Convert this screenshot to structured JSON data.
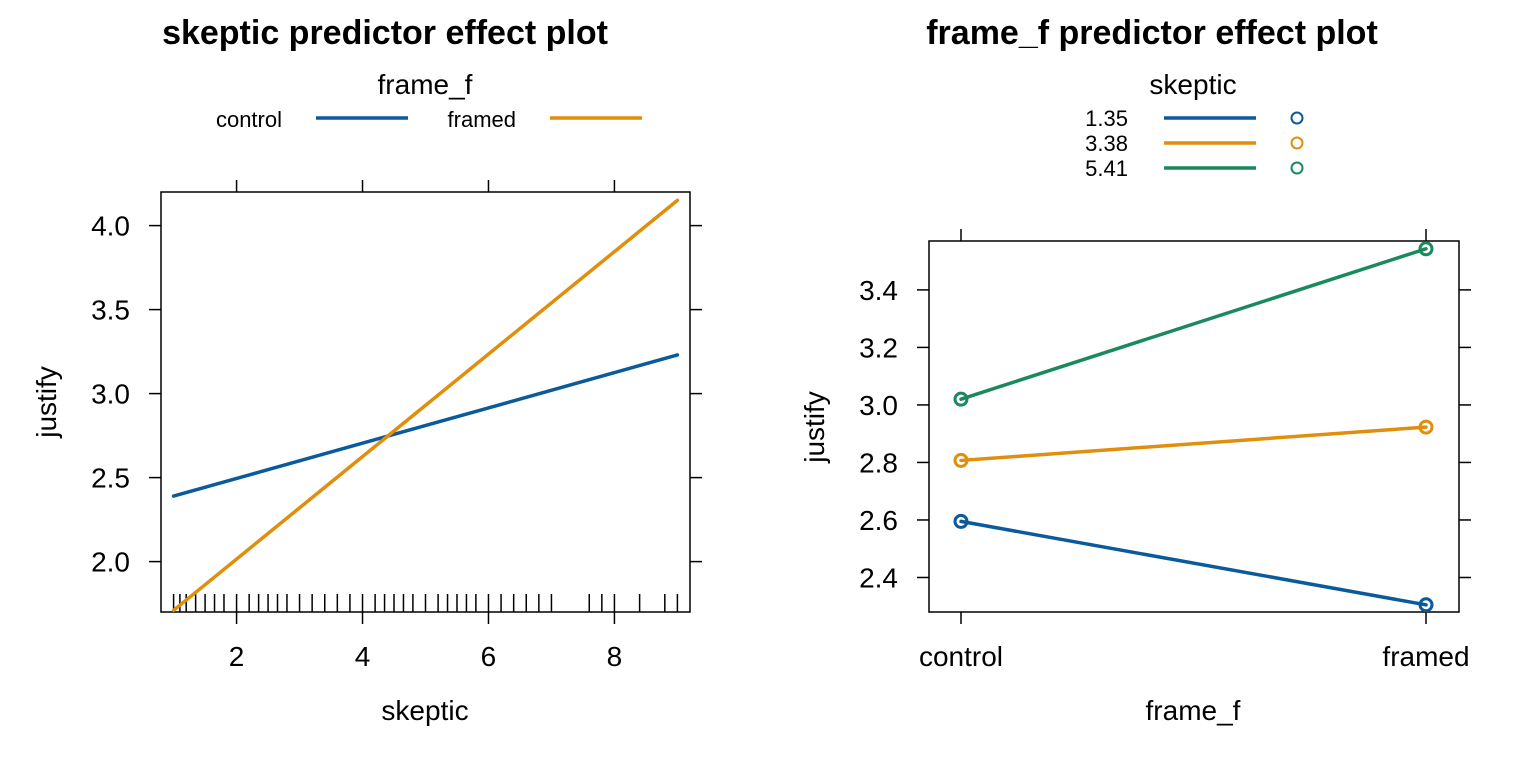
{
  "chart_data": [
    {
      "type": "line",
      "title": "skeptic predictor effect plot",
      "xlabel": "skeptic",
      "ylabel": "justify",
      "xlim": [
        0.8,
        9.2
      ],
      "ylim": [
        1.7,
        4.2
      ],
      "xticks": [
        "2",
        "4",
        "6",
        "8"
      ],
      "yticks": [
        "2.0",
        "2.5",
        "3.0",
        "3.5",
        "4.0"
      ],
      "legend_title": "frame_f",
      "legend_position": "top",
      "rug": true,
      "rug_values": [
        1.0,
        1.1,
        1.2,
        1.35,
        1.5,
        1.65,
        1.8,
        2.0,
        2.2,
        2.35,
        2.5,
        2.65,
        2.8,
        3.0,
        3.2,
        3.4,
        3.6,
        3.8,
        4.0,
        4.2,
        4.35,
        4.5,
        4.65,
        4.8,
        5.0,
        5.2,
        5.35,
        5.5,
        5.65,
        5.8,
        6.0,
        6.2,
        6.4,
        6.6,
        6.8,
        7.0,
        7.6,
        7.8,
        8.0,
        8.4,
        8.8,
        9.0
      ],
      "series": [
        {
          "name": "control",
          "color": "#0a5a9c",
          "x": [
            1.0,
            9.0
          ],
          "y": [
            2.39,
            3.23
          ]
        },
        {
          "name": "framed",
          "color": "#e08e0b",
          "x": [
            1.0,
            9.0
          ],
          "y": [
            1.71,
            4.15
          ]
        }
      ]
    },
    {
      "type": "line",
      "title": "frame_f predictor effect plot",
      "xlabel": "frame_f",
      "ylabel": "justify",
      "categories": [
        "control",
        "framed"
      ],
      "ylim": [
        2.28,
        3.57
      ],
      "yticks": [
        "2.4",
        "2.6",
        "2.8",
        "3.0",
        "3.2",
        "3.4"
      ],
      "legend_title": "skeptic",
      "legend_position": "top",
      "markers": "circle",
      "series": [
        {
          "name": "1.35",
          "color": "#0a5a9c",
          "values": [
            2.595,
            2.305
          ]
        },
        {
          "name": "3.38",
          "color": "#e08e0b",
          "values": [
            2.807,
            2.923
          ]
        },
        {
          "name": "5.41",
          "color": "#1a8a5e",
          "values": [
            3.02,
            3.543
          ]
        }
      ]
    }
  ]
}
